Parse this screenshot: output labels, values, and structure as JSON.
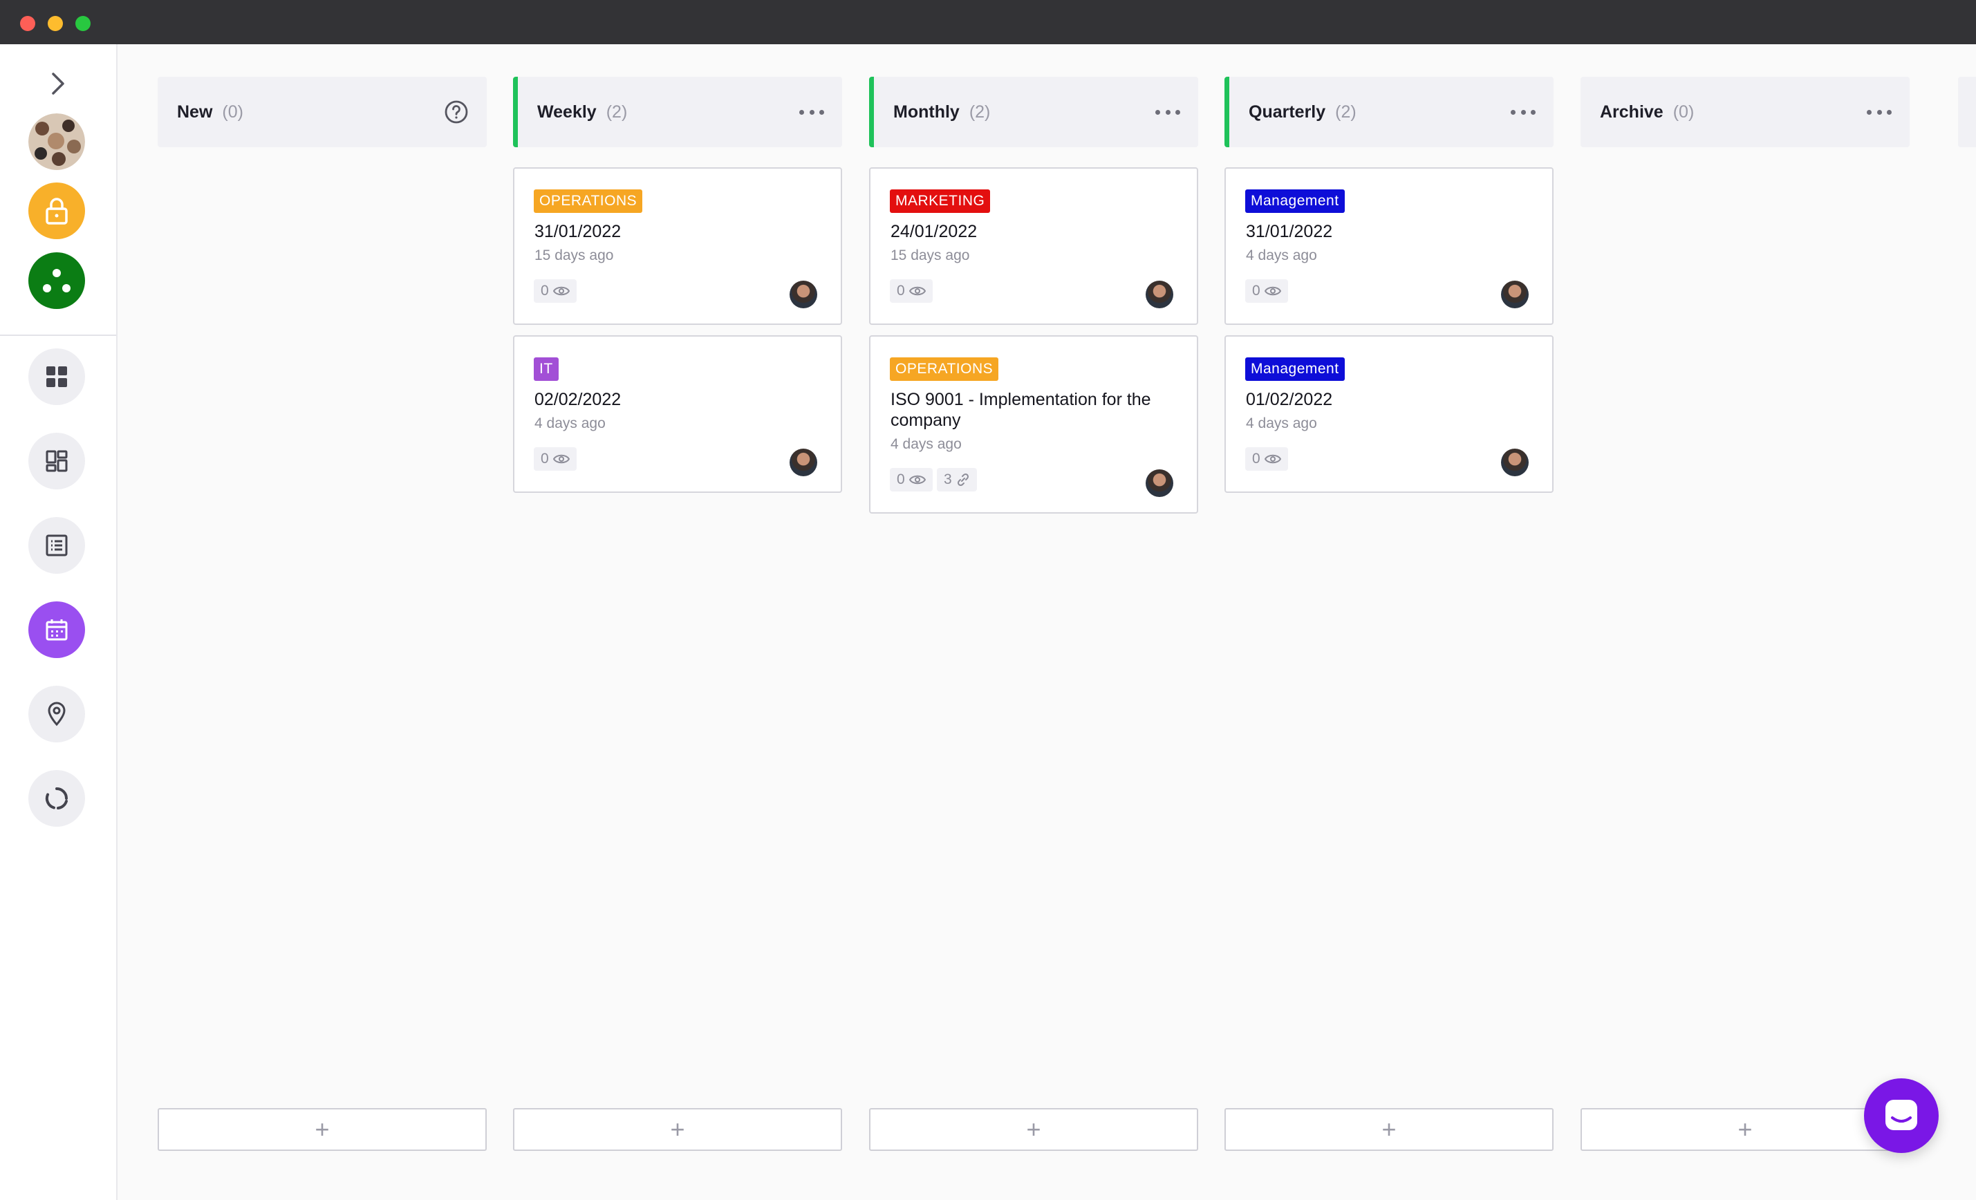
{
  "sidebar": {
    "items": [
      {
        "name": "expand-chevron-icon"
      },
      {
        "name": "team-avatar"
      },
      {
        "name": "lock-icon",
        "color": "#f8b02a"
      },
      {
        "name": "group-icon",
        "color": "#0b7d14"
      },
      {
        "name": "dashboard-icon"
      },
      {
        "name": "widgets-icon"
      },
      {
        "name": "list-icon"
      },
      {
        "name": "calendar-icon",
        "color": "#9a4ff0"
      },
      {
        "name": "location-pin-icon"
      },
      {
        "name": "loading-circle-icon"
      }
    ]
  },
  "columns": [
    {
      "title": "New",
      "count": "(0)",
      "accent": false,
      "cards": []
    },
    {
      "title": "Weekly",
      "count": "(2)",
      "accent": true,
      "cards": [
        {
          "tag": "OPERATIONS",
          "tag_color": "#f6a623",
          "title": "31/01/2022",
          "time": "15 days ago",
          "views": "0"
        },
        {
          "tag": "IT",
          "tag_color": "#a24fd6",
          "title": "02/02/2022",
          "time": "4 days ago",
          "views": "0"
        }
      ]
    },
    {
      "title": "Monthly",
      "count": "(2)",
      "accent": true,
      "cards": [
        {
          "tag": "MARKETING",
          "tag_color": "#e30f0f",
          "title": "24/01/2022",
          "time": "15 days ago",
          "views": "0"
        },
        {
          "tag": "OPERATIONS",
          "tag_color": "#f6a623",
          "title": "ISO 9001 - Implementation for the company",
          "time": "4 days ago",
          "views": "0",
          "links": "3"
        }
      ]
    },
    {
      "title": "Quarterly",
      "count": "(2)",
      "accent": true,
      "cards": [
        {
          "tag": "Management",
          "tag_color": "#0e0ed8",
          "title": "31/01/2022",
          "time": "4 days ago",
          "views": "0"
        },
        {
          "tag": "Management",
          "tag_color": "#0e0ed8",
          "title": "01/02/2022",
          "time": "4 days ago",
          "views": "0"
        }
      ]
    },
    {
      "title": "Archive",
      "count": "(0)",
      "accent": false,
      "cards": []
    }
  ],
  "add_label": "+",
  "chat": {
    "color": "#7a17e6"
  }
}
